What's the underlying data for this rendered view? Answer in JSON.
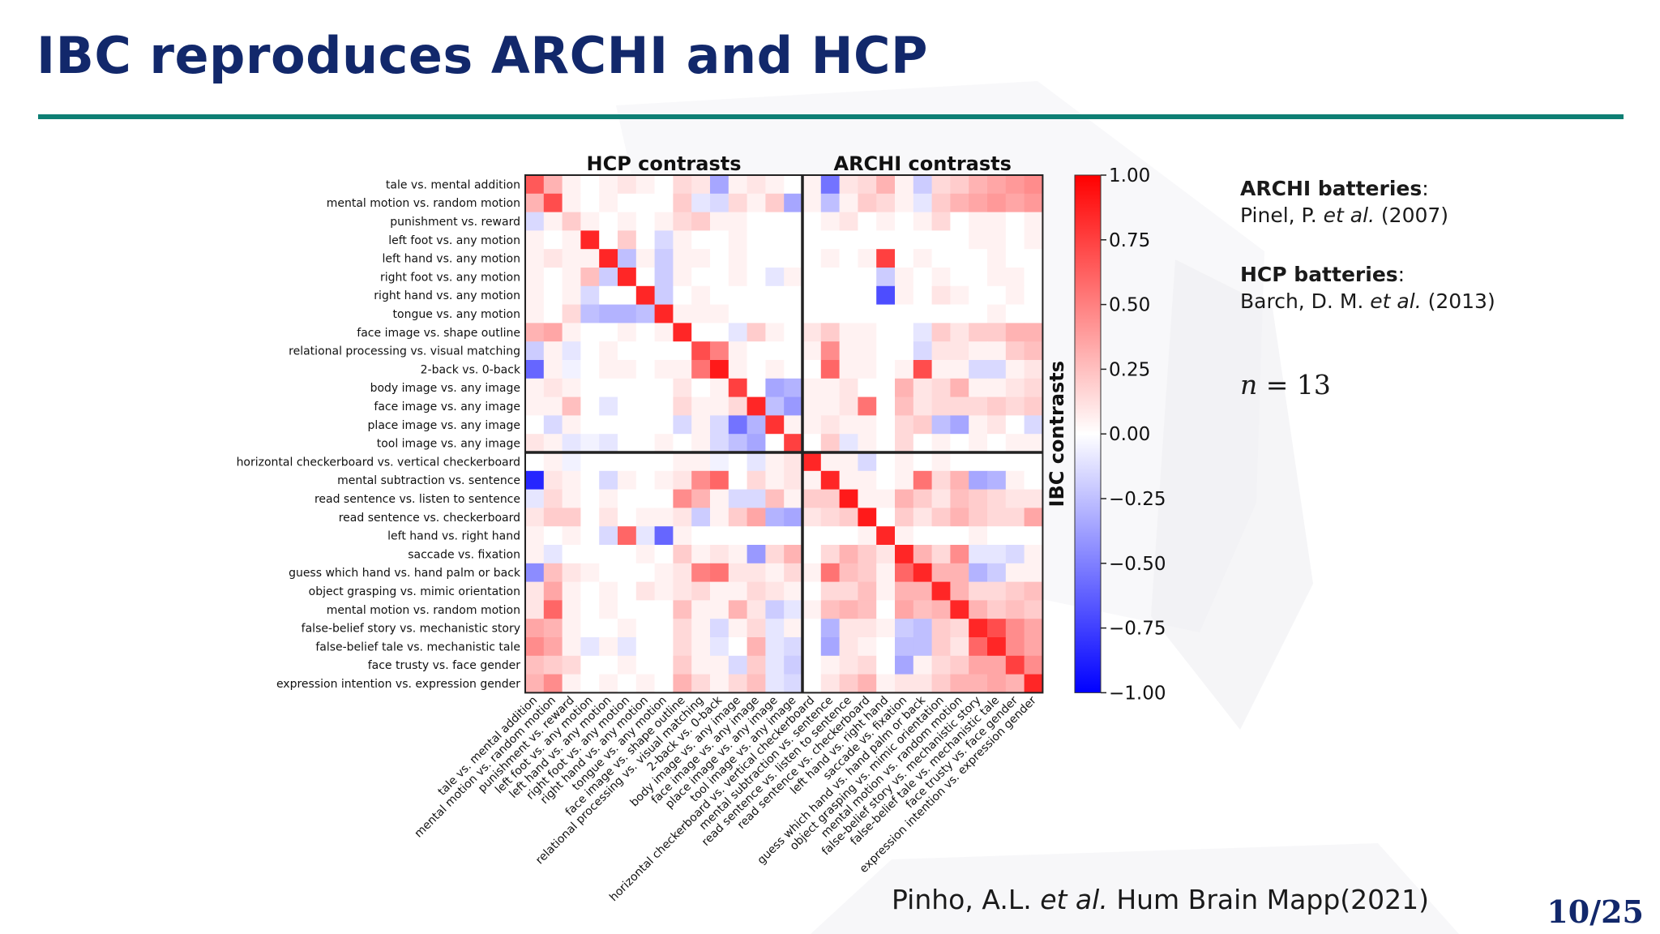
{
  "slide": {
    "title": "IBC reproduces ARCHI and HCP",
    "page": "10/25"
  },
  "refs": [
    {
      "head_bold": "ARCHI batteries",
      "head_suffix": ":",
      "author": "Pinel, P. ",
      "etal": "et al.",
      "year": " (2007)"
    },
    {
      "head_bold": "HCP batteries",
      "head_suffix": ":",
      "author": "Barch, D. M. ",
      "etal": "et al.",
      "year": " (2013)"
    }
  ],
  "n_var": "n",
  "n_rest": " = 13",
  "citation": {
    "author": "Pinho, A.L. ",
    "etal": "et al.",
    "journal": " Hum Brain Mapp(2021)"
  },
  "chart_data": {
    "type": "heatmap",
    "col_group_titles": [
      "HCP contrasts",
      "ARCHI contrasts"
    ],
    "row_group_title": "IBC contrasts",
    "colorbar_ticks": [
      "1.00",
      "0.75",
      "0.50",
      "0.25",
      "0.00",
      "−0.25",
      "−0.50",
      "−0.75",
      "−1.00"
    ],
    "value_range": [
      -1,
      1
    ],
    "colormap": "bwr",
    "hcp_count": 15,
    "labels": [
      "tale vs. mental addition",
      "mental motion vs. random motion",
      "punishment vs. reward",
      "left foot vs. any motion",
      "left hand vs. any motion",
      "right foot vs. any motion",
      "right hand vs. any motion",
      "tongue vs. any motion",
      "face image vs. shape outline",
      "relational processing vs. visual matching",
      "2-back vs. 0-back",
      "body image vs. any image",
      "face image vs. any image",
      "place image vs. any image",
      "tool image vs. any image",
      "horizontal checkerboard vs. vertical checkerboard",
      "mental subtraction vs. sentence",
      "read sentence vs. listen to sentence",
      "read sentence vs. checkerboard",
      "left hand vs. right hand",
      "saccade vs. fixation",
      "guess which hand vs. hand palm or back",
      "object grasping vs. mimic orientation",
      "mental motion vs. random motion",
      "false-belief story vs. mechanistic story",
      "false-belief tale vs. mechanistic tale",
      "face trusty vs. face gender",
      "expression intention vs. expression gender"
    ],
    "values": [
      [
        0.65,
        0.3,
        0.05,
        0.0,
        0.05,
        0.1,
        0.05,
        0.0,
        0.15,
        0.1,
        -0.35,
        0.05,
        0.1,
        0.05,
        0.0,
        0.05,
        -0.55,
        0.1,
        0.15,
        0.3,
        0.05,
        -0.2,
        0.15,
        0.2,
        0.3,
        0.35,
        0.4,
        0.45
      ],
      [
        0.3,
        0.7,
        0.05,
        0.0,
        0.05,
        0.0,
        0.0,
        0.0,
        0.2,
        -0.1,
        -0.15,
        0.15,
        0.05,
        0.2,
        -0.35,
        0.05,
        -0.25,
        0.05,
        0.2,
        0.15,
        0.05,
        -0.1,
        0.2,
        0.3,
        0.35,
        0.4,
        0.35,
        0.4
      ],
      [
        -0.15,
        0.05,
        0.2,
        0.05,
        0.0,
        0.05,
        0.0,
        0.05,
        0.15,
        0.2,
        0.05,
        0.05,
        0.0,
        0.0,
        0.0,
        0.0,
        0.05,
        0.1,
        0.0,
        0.05,
        0.0,
        0.05,
        0.15,
        0.0,
        0.05,
        0.05,
        0.0,
        0.05
      ],
      [
        0.05,
        0.0,
        0.05,
        0.85,
        0.0,
        0.2,
        0.0,
        -0.15,
        0.05,
        0.0,
        0.0,
        0.05,
        0.0,
        0.0,
        0.0,
        0.0,
        0.0,
        0.0,
        0.0,
        0.0,
        0.0,
        0.0,
        0.0,
        0.0,
        0.05,
        0.05,
        0.0,
        0.05
      ],
      [
        0.05,
        0.1,
        0.05,
        0.05,
        0.85,
        -0.25,
        0.05,
        -0.2,
        0.05,
        0.05,
        0.0,
        0.05,
        0.0,
        0.0,
        0.0,
        0.0,
        0.05,
        0.0,
        0.05,
        0.75,
        0.0,
        0.05,
        0.0,
        0.0,
        0.0,
        0.05,
        0.0,
        0.0
      ],
      [
        0.05,
        0.0,
        0.05,
        0.25,
        -0.2,
        0.85,
        0.0,
        -0.2,
        0.05,
        0.0,
        0.0,
        0.05,
        0.0,
        -0.1,
        0.05,
        0.0,
        0.0,
        0.0,
        0.0,
        -0.2,
        0.05,
        0.0,
        0.05,
        0.0,
        0.0,
        0.05,
        0.05,
        0.0
      ],
      [
        0.05,
        0.0,
        0.05,
        -0.15,
        0.0,
        0.0,
        0.85,
        -0.2,
        0.0,
        0.05,
        0.0,
        0.0,
        0.0,
        0.0,
        0.0,
        0.0,
        0.0,
        0.0,
        0.0,
        -0.7,
        0.05,
        0.0,
        0.1,
        0.05,
        0.0,
        0.0,
        0.05,
        0.0
      ],
      [
        0.05,
        0.0,
        0.15,
        -0.25,
        -0.3,
        -0.3,
        -0.25,
        0.85,
        0.05,
        0.05,
        0.05,
        0.0,
        0.0,
        0.0,
        0.0,
        0.0,
        0.0,
        0.0,
        0.0,
        0.0,
        0.0,
        0.0,
        0.0,
        0.0,
        0.0,
        0.05,
        0.0,
        0.0
      ],
      [
        0.3,
        0.35,
        0.05,
        0.0,
        0.0,
        0.05,
        0.0,
        0.05,
        0.85,
        0.0,
        0.0,
        -0.1,
        0.2,
        0.05,
        0.0,
        0.1,
        0.2,
        0.05,
        0.05,
        0.0,
        0.0,
        -0.1,
        0.2,
        0.1,
        0.2,
        0.2,
        0.3,
        0.3
      ],
      [
        -0.2,
        0.05,
        -0.1,
        0.0,
        0.05,
        0.0,
        0.0,
        0.0,
        0.0,
        0.7,
        0.5,
        0.05,
        0.0,
        0.0,
        0.0,
        0.05,
        0.45,
        0.05,
        0.05,
        0.0,
        0.0,
        -0.15,
        0.1,
        0.1,
        0.05,
        0.05,
        0.2,
        0.25
      ],
      [
        -0.6,
        0.05,
        -0.05,
        0.0,
        0.05,
        0.05,
        0.0,
        0.05,
        0.05,
        0.55,
        0.9,
        0.05,
        0.0,
        0.05,
        0.0,
        0.0,
        0.6,
        0.05,
        0.05,
        0.0,
        0.05,
        0.7,
        0.05,
        0.05,
        -0.15,
        -0.15,
        0.05,
        0.1
      ],
      [
        0.05,
        0.1,
        0.05,
        0.0,
        0.0,
        0.0,
        0.0,
        0.0,
        0.1,
        0.0,
        0.05,
        0.75,
        0.0,
        -0.35,
        -0.3,
        0.05,
        0.05,
        0.1,
        0.0,
        0.0,
        0.3,
        0.1,
        0.15,
        0.3,
        0.05,
        0.05,
        0.1,
        0.15
      ],
      [
        0.05,
        0.05,
        0.25,
        0.0,
        -0.1,
        0.0,
        0.0,
        0.0,
        0.15,
        0.05,
        0.05,
        0.15,
        0.85,
        -0.25,
        -0.4,
        0.05,
        0.05,
        0.1,
        0.55,
        0.0,
        0.25,
        0.1,
        0.15,
        0.15,
        0.15,
        0.2,
        0.15,
        0.2
      ],
      [
        0.0,
        -0.15,
        0.05,
        0.0,
        0.0,
        0.0,
        0.0,
        0.0,
        -0.15,
        0.05,
        -0.15,
        -0.55,
        -0.3,
        0.8,
        0.05,
        0.05,
        0.1,
        0.05,
        0.05,
        0.0,
        0.15,
        0.2,
        -0.25,
        -0.35,
        0.05,
        0.1,
        0.0,
        -0.15
      ],
      [
        0.1,
        0.05,
        -0.1,
        -0.05,
        -0.1,
        0.0,
        0.0,
        0.05,
        0.0,
        0.05,
        -0.15,
        -0.25,
        -0.35,
        0.0,
        0.75,
        0.0,
        0.2,
        -0.1,
        0.05,
        0.0,
        0.15,
        0.0,
        0.05,
        0.0,
        0.05,
        0.0,
        0.05,
        0.05
      ],
      [
        0.0,
        0.05,
        -0.05,
        0.0,
        0.0,
        0.0,
        0.0,
        0.0,
        0.05,
        0.05,
        -0.05,
        0.0,
        -0.1,
        0.05,
        0.1,
        0.85,
        0.05,
        0.05,
        -0.15,
        0.0,
        0.05,
        0.0,
        0.05,
        0.0,
        0.0,
        0.0,
        0.0,
        0.0
      ],
      [
        -0.85,
        0.1,
        0.05,
        0.0,
        -0.15,
        0.05,
        0.0,
        0.05,
        0.1,
        0.45,
        0.6,
        0.0,
        0.15,
        0.05,
        0.1,
        0.05,
        0.85,
        0.05,
        0.05,
        0.0,
        0.05,
        0.55,
        0.15,
        0.3,
        -0.35,
        -0.3,
        0.05,
        0.0
      ],
      [
        -0.1,
        0.15,
        0.05,
        0.0,
        0.05,
        0.0,
        0.0,
        0.0,
        0.45,
        0.3,
        0.05,
        -0.15,
        -0.15,
        0.25,
        0.05,
        0.2,
        0.2,
        0.9,
        0.05,
        0.05,
        0.3,
        0.2,
        0.1,
        0.25,
        0.2,
        0.15,
        0.1,
        0.1
      ],
      [
        0.1,
        0.2,
        0.2,
        0.0,
        0.1,
        0.0,
        0.05,
        0.05,
        0.1,
        -0.2,
        0.05,
        0.2,
        0.35,
        -0.3,
        -0.35,
        0.1,
        0.15,
        0.2,
        0.9,
        0.0,
        0.2,
        0.1,
        0.2,
        0.3,
        0.2,
        0.15,
        0.15,
        0.35
      ],
      [
        0.05,
        0.0,
        0.05,
        0.0,
        -0.15,
        0.6,
        -0.1,
        -0.6,
        0.05,
        0.0,
        0.0,
        0.0,
        0.0,
        0.0,
        0.0,
        0.0,
        0.0,
        0.0,
        0.05,
        0.85,
        0.05,
        0.0,
        0.0,
        0.0,
        0.05,
        0.0,
        0.0,
        0.0
      ],
      [
        0.05,
        -0.1,
        0.0,
        0.0,
        0.0,
        0.0,
        0.05,
        0.0,
        0.2,
        0.05,
        0.1,
        0.05,
        -0.4,
        0.15,
        0.3,
        0.0,
        0.15,
        0.3,
        0.2,
        0.1,
        0.85,
        0.3,
        0.15,
        0.45,
        -0.1,
        -0.1,
        -0.15,
        0.05
      ],
      [
        -0.45,
        0.25,
        0.1,
        0.05,
        0.0,
        0.0,
        0.0,
        0.05,
        0.1,
        0.5,
        0.55,
        0.1,
        0.1,
        0.05,
        0.15,
        0.05,
        0.55,
        0.25,
        0.2,
        0.05,
        0.6,
        0.85,
        0.3,
        0.3,
        -0.3,
        -0.2,
        0.05,
        0.05
      ],
      [
        0.1,
        0.35,
        0.05,
        0.0,
        0.05,
        0.0,
        0.1,
        0.05,
        0.1,
        0.15,
        0.05,
        0.05,
        0.15,
        0.1,
        0.05,
        0.0,
        0.15,
        0.15,
        0.25,
        0.05,
        0.3,
        0.3,
        0.85,
        0.3,
        0.15,
        0.15,
        0.2,
        0.25
      ],
      [
        0.1,
        0.6,
        0.05,
        0.0,
        0.05,
        0.0,
        0.0,
        0.0,
        0.25,
        0.05,
        0.05,
        0.3,
        0.1,
        -0.2,
        -0.1,
        0.05,
        0.25,
        0.3,
        0.25,
        0.0,
        0.35,
        0.25,
        0.3,
        0.85,
        0.3,
        0.2,
        0.25,
        0.2
      ],
      [
        0.35,
        0.3,
        0.05,
        0.0,
        0.0,
        0.05,
        0.0,
        0.0,
        0.15,
        0.05,
        -0.15,
        0.05,
        0.15,
        -0.1,
        0.05,
        0.0,
        -0.3,
        0.1,
        0.1,
        0.05,
        -0.2,
        -0.25,
        0.2,
        0.15,
        0.85,
        0.7,
        0.45,
        0.35
      ],
      [
        0.45,
        0.35,
        0.05,
        -0.1,
        0.05,
        -0.1,
        0.0,
        0.0,
        0.15,
        0.05,
        -0.1,
        0.0,
        0.3,
        -0.1,
        -0.15,
        0.0,
        -0.35,
        0.1,
        0.05,
        0.0,
        -0.25,
        -0.25,
        0.2,
        0.1,
        0.6,
        0.85,
        0.45,
        0.35
      ],
      [
        0.25,
        0.2,
        0.15,
        0.0,
        0.0,
        0.05,
        0.0,
        0.0,
        0.2,
        0.05,
        0.05,
        -0.15,
        0.2,
        -0.1,
        -0.2,
        0.0,
        0.05,
        0.1,
        0.15,
        0.0,
        -0.35,
        0.05,
        0.15,
        0.2,
        0.35,
        0.35,
        0.75,
        0.45
      ],
      [
        0.3,
        0.45,
        0.05,
        0.0,
        0.05,
        0.0,
        0.05,
        0.0,
        0.3,
        0.15,
        0.05,
        0.15,
        0.25,
        -0.1,
        -0.15,
        0.0,
        0.1,
        0.2,
        0.3,
        0.05,
        0.1,
        0.1,
        0.2,
        0.3,
        0.3,
        0.35,
        0.3,
        0.85
      ]
    ]
  }
}
